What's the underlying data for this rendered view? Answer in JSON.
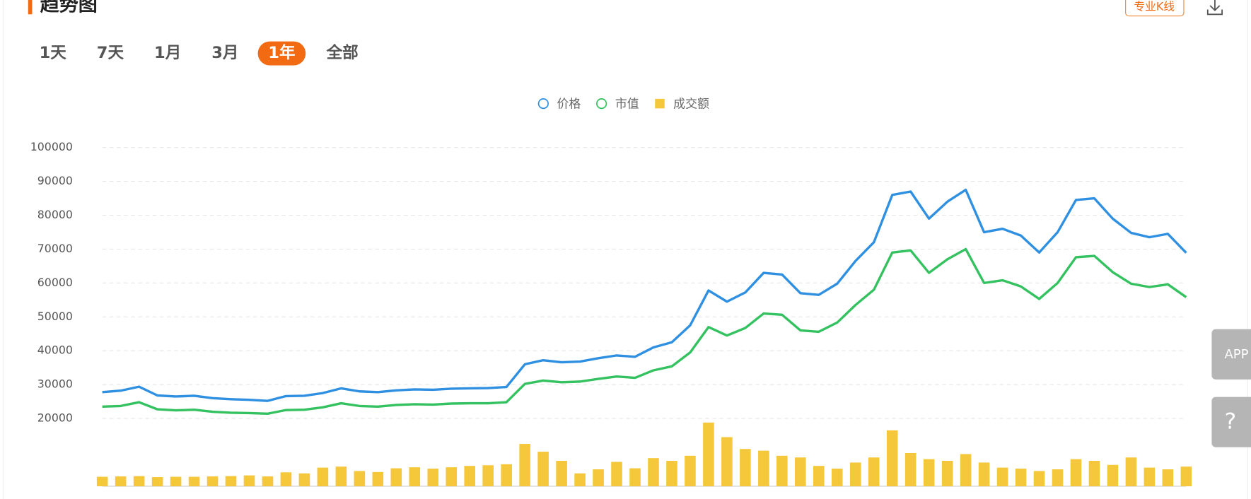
{
  "header": {
    "title": "趋势图",
    "kline_button": "专业K线"
  },
  "tabs": [
    "1天",
    "7天",
    "1月",
    "3月",
    "1年",
    "全部"
  ],
  "active_tab": 4,
  "side_buttons": [
    "APP",
    "?"
  ],
  "chart_data": {
    "type": "line",
    "categories": [
      null,
      null,
      null,
      null,
      null,
      null,
      null,
      null,
      null,
      null,
      null,
      null,
      null,
      null,
      null,
      null,
      null,
      null,
      null,
      null,
      null,
      null,
      null,
      null,
      null,
      null,
      null,
      null,
      null,
      null,
      null,
      null,
      null,
      null,
      null,
      null,
      null,
      null,
      null,
      null,
      null,
      null,
      null,
      null,
      null,
      null,
      null,
      null,
      null,
      null,
      null,
      null,
      null,
      null,
      null,
      null,
      null,
      null,
      null,
      null
    ],
    "series": [
      {
        "name": "价格",
        "color": "#2f8fe0",
        "values": [
          27800,
          28200,
          29400,
          26800,
          26500,
          26700,
          26000,
          25700,
          25500,
          25200,
          26600,
          26700,
          27500,
          28900,
          28000,
          27800,
          28300,
          28600,
          28500,
          28800,
          28900,
          29000,
          29300,
          36000,
          37200,
          36600,
          36800,
          37800,
          38600,
          38200,
          41000,
          42500,
          47500,
          57800,
          54500,
          57200,
          63000,
          62500,
          57000,
          56500,
          59800,
          66500,
          72000,
          86000,
          87000,
          79000,
          84000,
          87500,
          75000,
          76000,
          74000,
          69000,
          75000,
          84500,
          85000,
          79000,
          74800,
          73500,
          74500,
          68900
        ]
      },
      {
        "name": "市值",
        "color": "#34c15f",
        "values": [
          23500,
          23700,
          24800,
          22700,
          22400,
          22600,
          22000,
          21700,
          21600,
          21400,
          22500,
          22600,
          23300,
          24500,
          23700,
          23500,
          24000,
          24200,
          24100,
          24400,
          24500,
          24500,
          24800,
          30200,
          31200,
          30700,
          30900,
          31700,
          32400,
          32000,
          34200,
          35400,
          39500,
          47000,
          44500,
          46700,
          51000,
          50600,
          46000,
          45600,
          48300,
          53500,
          58000,
          69000,
          69600,
          63000,
          67000,
          70000,
          60000,
          60800,
          59000,
          55300,
          60000,
          67600,
          68000,
          63200,
          59800,
          58800,
          59600,
          55800
        ]
      },
      {
        "name": "成交额",
        "color": "#f5c83b",
        "type": "bar",
        "axis": "y2",
        "values": [
          2.8,
          2.9,
          3.0,
          2.7,
          2.8,
          2.8,
          2.9,
          3.0,
          3.2,
          2.9,
          4.1,
          3.8,
          5.5,
          5.8,
          4.5,
          4.2,
          5.3,
          5.6,
          5.2,
          5.6,
          6.0,
          6.2,
          6.5,
          12.5,
          10.2,
          7.5,
          3.8,
          5.0,
          7.2,
          5.3,
          8.3,
          7.5,
          9.0,
          18.8,
          14.5,
          11.0,
          10.5,
          9.0,
          8.5,
          6.0,
          5.2,
          7.0,
          8.5,
          16.5,
          9.8,
          8.0,
          7.5,
          9.5,
          7.0,
          5.5,
          5.2,
          4.5,
          5.0,
          8.0,
          7.5,
          6.3,
          8.5,
          5.5,
          5.0,
          5.8
        ]
      }
    ],
    "ylim": [
      0,
      100000
    ],
    "yticks": [
      20000,
      30000,
      40000,
      50000,
      60000,
      70000,
      80000,
      90000,
      100000
    ],
    "y2lim": [
      0,
      100
    ],
    "grid": true,
    "legend": "top"
  }
}
